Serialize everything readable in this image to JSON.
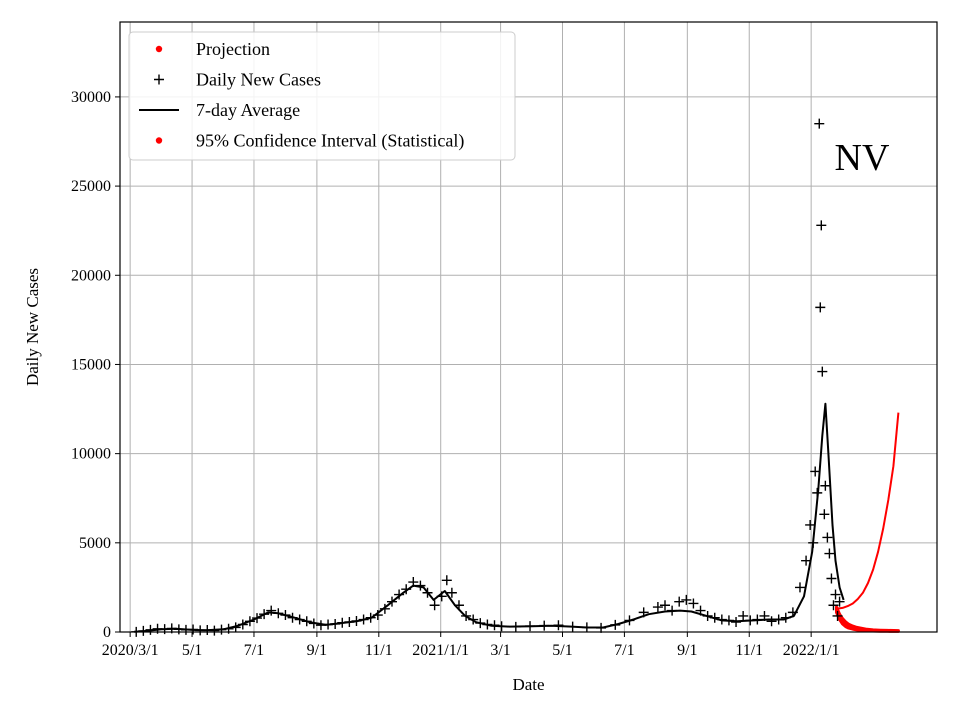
{
  "chart_data": {
    "type": "line",
    "xlabel": "Date",
    "ylabel": "Daily New Cases",
    "annotation": "NV",
    "x_range": [
      "2020-02-20",
      "2022-05-05"
    ],
    "ylim": [
      0,
      34200
    ],
    "grid": true,
    "legend_position": "top-left",
    "x_ticks": [
      {
        "date": "2020-03-01",
        "label": "2020/3/1"
      },
      {
        "date": "2020-05-01",
        "label": "5/1"
      },
      {
        "date": "2020-07-01",
        "label": "7/1"
      },
      {
        "date": "2020-09-01",
        "label": "9/1"
      },
      {
        "date": "2020-11-01",
        "label": "11/1"
      },
      {
        "date": "2021-01-01",
        "label": "2021/1/1"
      },
      {
        "date": "2021-03-01",
        "label": "3/1"
      },
      {
        "date": "2021-05-01",
        "label": "5/1"
      },
      {
        "date": "2021-07-01",
        "label": "7/1"
      },
      {
        "date": "2021-09-01",
        "label": "9/1"
      },
      {
        "date": "2021-11-01",
        "label": "11/1"
      },
      {
        "date": "2022-01-01",
        "label": "2022/1/1"
      }
    ],
    "y_ticks": [
      {
        "value": 0,
        "label": "0"
      },
      {
        "value": 5000,
        "label": "5000"
      },
      {
        "value": 10000,
        "label": "10000"
      },
      {
        "value": 15000,
        "label": "15000"
      },
      {
        "value": 20000,
        "label": "20000"
      },
      {
        "value": 25000,
        "label": "25000"
      },
      {
        "value": 30000,
        "label": "30000"
      }
    ],
    "legend": [
      {
        "label": "Projection",
        "marker": "dot",
        "color": "#ff0000"
      },
      {
        "label": "Daily New Cases",
        "marker": "plus",
        "color": "#000000"
      },
      {
        "label": "7-day Average",
        "marker": "line",
        "color": "#000000"
      },
      {
        "label": "95% Confidence Interval (Statistical)",
        "marker": "dot",
        "color": "#ff0000"
      }
    ],
    "series": [
      {
        "name": "7-day Average",
        "color": "#000000",
        "style": "line",
        "points": [
          [
            "2020-03-05",
            10
          ],
          [
            "2020-03-15",
            50
          ],
          [
            "2020-04-01",
            150
          ],
          [
            "2020-04-15",
            180
          ],
          [
            "2020-05-01",
            120
          ],
          [
            "2020-05-15",
            100
          ],
          [
            "2020-06-01",
            150
          ],
          [
            "2020-06-15",
            350
          ],
          [
            "2020-07-01",
            700
          ],
          [
            "2020-07-15",
            1100
          ],
          [
            "2020-07-25",
            1050
          ],
          [
            "2020-08-10",
            800
          ],
          [
            "2020-08-25",
            550
          ],
          [
            "2020-09-10",
            400
          ],
          [
            "2020-09-25",
            500
          ],
          [
            "2020-10-10",
            600
          ],
          [
            "2020-10-25",
            800
          ],
          [
            "2020-11-10",
            1500
          ],
          [
            "2020-11-25",
            2200
          ],
          [
            "2020-12-05",
            2600
          ],
          [
            "2020-12-15",
            2500
          ],
          [
            "2020-12-25",
            1800
          ],
          [
            "2021-01-05",
            2300
          ],
          [
            "2021-01-15",
            1500
          ],
          [
            "2021-01-25",
            900
          ],
          [
            "2021-02-05",
            550
          ],
          [
            "2021-02-20",
            350
          ],
          [
            "2021-03-10",
            300
          ],
          [
            "2021-04-01",
            320
          ],
          [
            "2021-04-20",
            350
          ],
          [
            "2021-05-10",
            300
          ],
          [
            "2021-05-25",
            250
          ],
          [
            "2021-06-10",
            250
          ],
          [
            "2021-06-25",
            450
          ],
          [
            "2021-07-10",
            700
          ],
          [
            "2021-07-25",
            1000
          ],
          [
            "2021-08-10",
            1150
          ],
          [
            "2021-08-25",
            1200
          ],
          [
            "2021-09-05",
            1150
          ],
          [
            "2021-09-20",
            900
          ],
          [
            "2021-10-05",
            650
          ],
          [
            "2021-10-20",
            600
          ],
          [
            "2021-11-05",
            650
          ],
          [
            "2021-11-20",
            700
          ],
          [
            "2021-12-05",
            700
          ],
          [
            "2021-12-15",
            900
          ],
          [
            "2021-12-25",
            2000
          ],
          [
            "2022-01-02",
            4500
          ],
          [
            "2022-01-08",
            8000
          ],
          [
            "2022-01-12",
            11000
          ],
          [
            "2022-01-15",
            12800
          ],
          [
            "2022-01-18",
            10000
          ],
          [
            "2022-01-22",
            6000
          ],
          [
            "2022-01-25",
            4000
          ],
          [
            "2022-01-29",
            2500
          ],
          [
            "2022-02-02",
            1800
          ]
        ]
      },
      {
        "name": "Daily New Cases",
        "color": "#000000",
        "style": "plus",
        "points": [
          [
            "2020-03-07",
            10
          ],
          [
            "2020-03-14",
            60
          ],
          [
            "2020-03-21",
            120
          ],
          [
            "2020-03-28",
            180
          ],
          [
            "2020-04-04",
            160
          ],
          [
            "2020-04-11",
            200
          ],
          [
            "2020-04-18",
            150
          ],
          [
            "2020-04-25",
            120
          ],
          [
            "2020-05-02",
            140
          ],
          [
            "2020-05-09",
            90
          ],
          [
            "2020-05-16",
            110
          ],
          [
            "2020-05-23",
            80
          ],
          [
            "2020-05-30",
            130
          ],
          [
            "2020-06-06",
            180
          ],
          [
            "2020-06-13",
            260
          ],
          [
            "2020-06-20",
            420
          ],
          [
            "2020-06-27",
            600
          ],
          [
            "2020-07-04",
            780
          ],
          [
            "2020-07-11",
            1000
          ],
          [
            "2020-07-18",
            1200
          ],
          [
            "2020-07-25",
            1050
          ],
          [
            "2020-08-01",
            950
          ],
          [
            "2020-08-08",
            800
          ],
          [
            "2020-08-15",
            700
          ],
          [
            "2020-08-22",
            600
          ],
          [
            "2020-08-29",
            480
          ],
          [
            "2020-09-05",
            380
          ],
          [
            "2020-09-12",
            420
          ],
          [
            "2020-09-19",
            450
          ],
          [
            "2020-09-26",
            520
          ],
          [
            "2020-10-03",
            560
          ],
          [
            "2020-10-10",
            620
          ],
          [
            "2020-10-17",
            700
          ],
          [
            "2020-10-24",
            800
          ],
          [
            "2020-10-31",
            950
          ],
          [
            "2020-11-07",
            1300
          ],
          [
            "2020-11-14",
            1700
          ],
          [
            "2020-11-21",
            2100
          ],
          [
            "2020-11-28",
            2400
          ],
          [
            "2020-12-05",
            2800
          ],
          [
            "2020-12-12",
            2600
          ],
          [
            "2020-12-19",
            2200
          ],
          [
            "2020-12-26",
            1500
          ],
          [
            "2021-01-02",
            2000
          ],
          [
            "2021-01-07",
            2900
          ],
          [
            "2021-01-12",
            2200
          ],
          [
            "2021-01-19",
            1500
          ],
          [
            "2021-01-26",
            900
          ],
          [
            "2021-02-02",
            700
          ],
          [
            "2021-02-09",
            500
          ],
          [
            "2021-02-16",
            420
          ],
          [
            "2021-02-23",
            380
          ],
          [
            "2021-03-02",
            320
          ],
          [
            "2021-03-16",
            290
          ],
          [
            "2021-03-30",
            330
          ],
          [
            "2021-04-13",
            360
          ],
          [
            "2021-04-27",
            380
          ],
          [
            "2021-05-11",
            300
          ],
          [
            "2021-05-25",
            260
          ],
          [
            "2021-06-08",
            230
          ],
          [
            "2021-06-22",
            400
          ],
          [
            "2021-07-06",
            650
          ],
          [
            "2021-07-20",
            1100
          ],
          [
            "2021-08-03",
            1400
          ],
          [
            "2021-08-10",
            1500
          ],
          [
            "2021-08-17",
            1200
          ],
          [
            "2021-08-24",
            1700
          ],
          [
            "2021-08-31",
            1800
          ],
          [
            "2021-09-07",
            1600
          ],
          [
            "2021-09-14",
            1200
          ],
          [
            "2021-09-21",
            900
          ],
          [
            "2021-09-28",
            800
          ],
          [
            "2021-10-05",
            700
          ],
          [
            "2021-10-12",
            650
          ],
          [
            "2021-10-19",
            560
          ],
          [
            "2021-10-26",
            900
          ],
          [
            "2021-11-02",
            650
          ],
          [
            "2021-11-09",
            700
          ],
          [
            "2021-11-16",
            900
          ],
          [
            "2021-11-23",
            600
          ],
          [
            "2021-11-30",
            700
          ],
          [
            "2021-12-07",
            800
          ],
          [
            "2021-12-14",
            1100
          ],
          [
            "2021-12-21",
            2500
          ],
          [
            "2021-12-27",
            4000
          ],
          [
            "2021-12-31",
            6000
          ],
          [
            "2022-01-03",
            5000
          ],
          [
            "2022-01-05",
            9000
          ],
          [
            "2022-01-07",
            7800
          ],
          [
            "2022-01-09",
            28500
          ],
          [
            "2022-01-10",
            18200
          ],
          [
            "2022-01-11",
            22800
          ],
          [
            "2022-01-12",
            14600
          ],
          [
            "2022-01-14",
            6600
          ],
          [
            "2022-01-15",
            8200
          ],
          [
            "2022-01-17",
            5300
          ],
          [
            "2022-01-19",
            4400
          ],
          [
            "2022-01-21",
            3000
          ],
          [
            "2022-01-23",
            1500
          ],
          [
            "2022-01-25",
            2100
          ],
          [
            "2022-01-27",
            900
          ],
          [
            "2022-01-29",
            1700
          ]
        ]
      },
      {
        "name": "Projection",
        "color": "#ff0000",
        "style": "line",
        "points": [
          [
            "2022-01-26",
            1300
          ],
          [
            "2022-02-01",
            1350
          ],
          [
            "2022-02-06",
            1450
          ],
          [
            "2022-02-11",
            1600
          ],
          [
            "2022-02-16",
            1850
          ],
          [
            "2022-02-21",
            2200
          ],
          [
            "2022-02-26",
            2750
          ],
          [
            "2022-03-03",
            3500
          ],
          [
            "2022-03-08",
            4500
          ],
          [
            "2022-03-13",
            5800
          ],
          [
            "2022-03-18",
            7400
          ],
          [
            "2022-03-23",
            9300
          ],
          [
            "2022-03-28",
            12300
          ]
        ]
      },
      {
        "name": "95% Confidence Interval (Statistical)",
        "color": "#ff0000",
        "style": "band",
        "points": [
          [
            "2022-01-26",
            1400
          ],
          [
            "2022-01-29",
            1000
          ],
          [
            "2022-02-01",
            750
          ],
          [
            "2022-02-04",
            560
          ],
          [
            "2022-02-07",
            430
          ],
          [
            "2022-02-11",
            330
          ],
          [
            "2022-02-15",
            260
          ],
          [
            "2022-02-20",
            200
          ],
          [
            "2022-02-25",
            150
          ],
          [
            "2022-03-03",
            120
          ],
          [
            "2022-03-10",
            100
          ],
          [
            "2022-03-17",
            90
          ],
          [
            "2022-03-28",
            80
          ]
        ],
        "lower": [
          [
            "2022-01-26",
            1100
          ],
          [
            "2022-01-29",
            700
          ],
          [
            "2022-02-01",
            450
          ],
          [
            "2022-02-04",
            300
          ],
          [
            "2022-02-07",
            220
          ],
          [
            "2022-02-11",
            160
          ],
          [
            "2022-02-15",
            120
          ],
          [
            "2022-02-20",
            90
          ],
          [
            "2022-02-25",
            70
          ],
          [
            "2022-03-03",
            55
          ],
          [
            "2022-03-10",
            45
          ],
          [
            "2022-03-17",
            40
          ],
          [
            "2022-03-28",
            35
          ]
        ]
      }
    ]
  }
}
